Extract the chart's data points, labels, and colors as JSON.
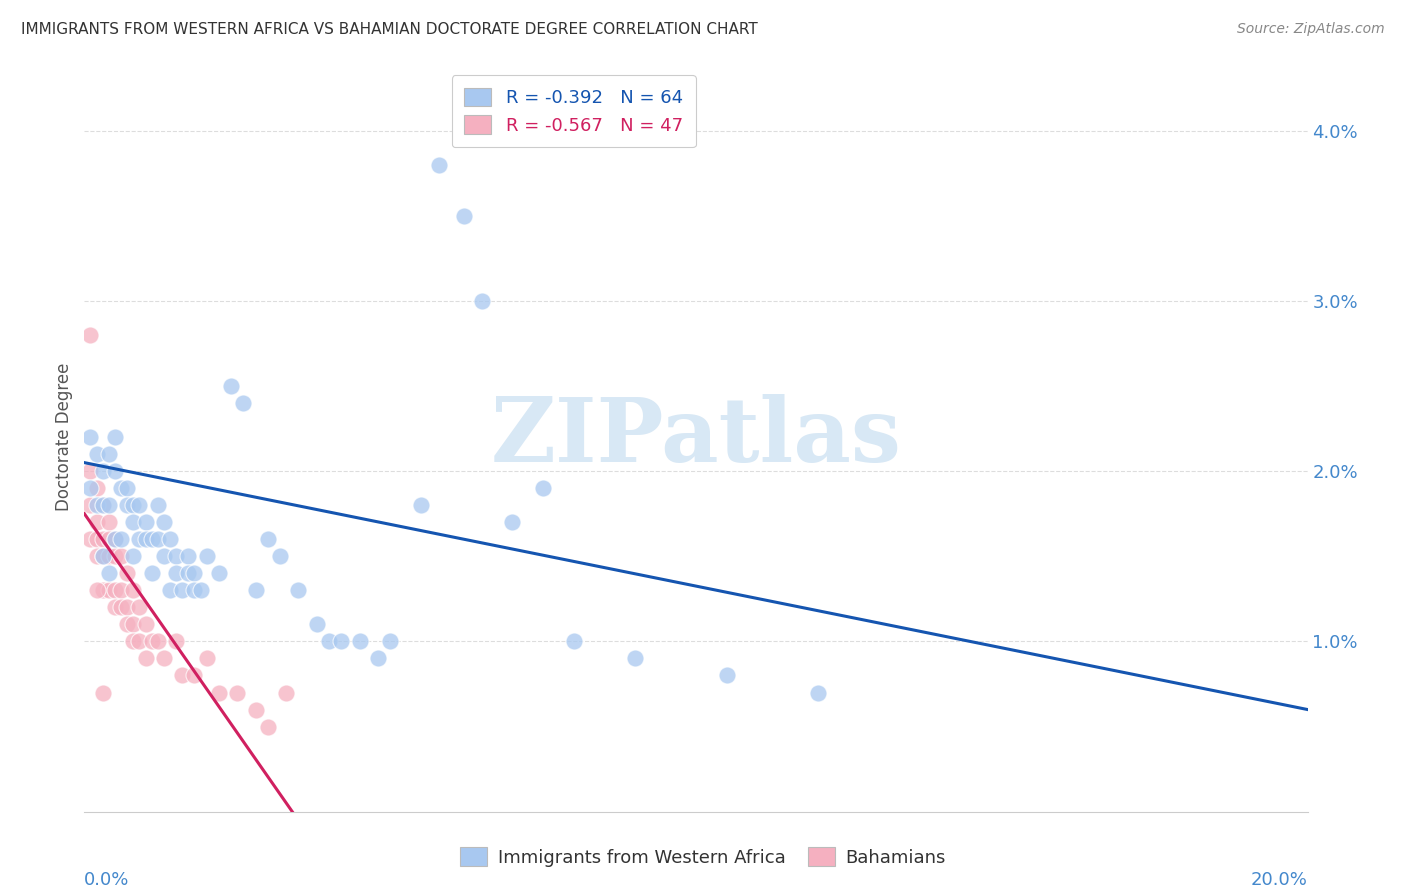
{
  "title": "IMMIGRANTS FROM WESTERN AFRICA VS BAHAMIAN DOCTORATE DEGREE CORRELATION CHART",
  "source": "Source: ZipAtlas.com",
  "ylabel": "Doctorate Degree",
  "xlim": [
    0.0,
    0.2
  ],
  "ylim": [
    0.0,
    0.044
  ],
  "r_blue": -0.392,
  "n_blue": 64,
  "r_pink": -0.567,
  "n_pink": 47,
  "blue_scatter_x": [
    0.001,
    0.001,
    0.002,
    0.002,
    0.003,
    0.003,
    0.003,
    0.004,
    0.004,
    0.004,
    0.005,
    0.005,
    0.005,
    0.006,
    0.006,
    0.007,
    0.007,
    0.008,
    0.008,
    0.008,
    0.009,
    0.009,
    0.01,
    0.01,
    0.011,
    0.011,
    0.012,
    0.012,
    0.013,
    0.013,
    0.014,
    0.014,
    0.015,
    0.015,
    0.016,
    0.017,
    0.017,
    0.018,
    0.018,
    0.019,
    0.02,
    0.022,
    0.024,
    0.026,
    0.028,
    0.03,
    0.032,
    0.035,
    0.038,
    0.04,
    0.042,
    0.045,
    0.048,
    0.05,
    0.055,
    0.058,
    0.062,
    0.065,
    0.07,
    0.075,
    0.08,
    0.09,
    0.105,
    0.12
  ],
  "blue_scatter_y": [
    0.022,
    0.019,
    0.021,
    0.018,
    0.02,
    0.018,
    0.015,
    0.021,
    0.018,
    0.014,
    0.022,
    0.02,
    0.016,
    0.019,
    0.016,
    0.019,
    0.018,
    0.018,
    0.017,
    0.015,
    0.018,
    0.016,
    0.017,
    0.016,
    0.016,
    0.014,
    0.018,
    0.016,
    0.017,
    0.015,
    0.016,
    0.013,
    0.015,
    0.014,
    0.013,
    0.015,
    0.014,
    0.014,
    0.013,
    0.013,
    0.015,
    0.014,
    0.025,
    0.024,
    0.013,
    0.016,
    0.015,
    0.013,
    0.011,
    0.01,
    0.01,
    0.01,
    0.009,
    0.01,
    0.018,
    0.038,
    0.035,
    0.03,
    0.017,
    0.019,
    0.01,
    0.009,
    0.008,
    0.007
  ],
  "pink_scatter_x": [
    0.001,
    0.001,
    0.001,
    0.002,
    0.002,
    0.002,
    0.002,
    0.003,
    0.003,
    0.003,
    0.003,
    0.004,
    0.004,
    0.004,
    0.004,
    0.005,
    0.005,
    0.005,
    0.005,
    0.006,
    0.006,
    0.006,
    0.007,
    0.007,
    0.007,
    0.008,
    0.008,
    0.008,
    0.009,
    0.009,
    0.01,
    0.01,
    0.011,
    0.012,
    0.013,
    0.015,
    0.016,
    0.018,
    0.02,
    0.022,
    0.025,
    0.028,
    0.03,
    0.033,
    0.001,
    0.002,
    0.003
  ],
  "pink_scatter_y": [
    0.02,
    0.018,
    0.016,
    0.019,
    0.017,
    0.016,
    0.015,
    0.018,
    0.016,
    0.015,
    0.013,
    0.017,
    0.016,
    0.015,
    0.013,
    0.016,
    0.015,
    0.013,
    0.012,
    0.015,
    0.013,
    0.012,
    0.014,
    0.012,
    0.011,
    0.013,
    0.011,
    0.01,
    0.012,
    0.01,
    0.011,
    0.009,
    0.01,
    0.01,
    0.009,
    0.01,
    0.008,
    0.008,
    0.009,
    0.007,
    0.007,
    0.006,
    0.005,
    0.007,
    0.028,
    0.013,
    0.007
  ],
  "blue_line_x": [
    0.0,
    0.2
  ],
  "blue_line_y": [
    0.0205,
    0.006
  ],
  "pink_line_x": [
    0.0,
    0.034
  ],
  "pink_line_y": [
    0.0175,
    0.0
  ],
  "blue_color": "#A8C8F0",
  "pink_color": "#F5B0C0",
  "blue_line_color": "#1555B0",
  "pink_line_color": "#D02060",
  "background_color": "#FFFFFF",
  "grid_color": "#DDDDDD",
  "title_color": "#333333",
  "axis_label_color": "#4488CC",
  "watermark_color": "#D8E8F5",
  "watermark_text": "ZIPatlas"
}
